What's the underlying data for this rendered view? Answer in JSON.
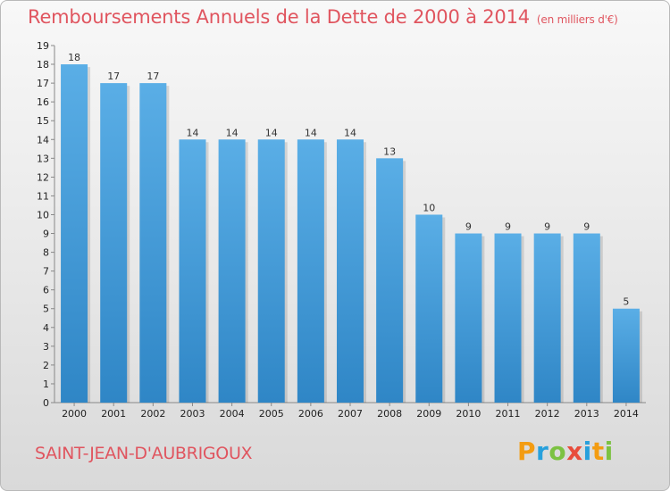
{
  "title": "Remboursements Annuels de la Dette de 2000 à 2014",
  "subtitle": "(en milliers d'€)",
  "commune": "SAINT-JEAN-D'AUBRIGOUX",
  "logo": {
    "letters": [
      "P",
      "r",
      "o",
      "x",
      "i",
      "t",
      "i"
    ],
    "colors": [
      "#f39c12",
      "#27a0dc",
      "#7cc242",
      "#e84d3c",
      "#27a0dc",
      "#f39c12",
      "#7cc242"
    ]
  },
  "colors": {
    "title": "#e0555f",
    "bar_top": "#5aaee6",
    "bar_bottom": "#2f86c6"
  },
  "chart_data": {
    "type": "bar",
    "title": "Remboursements Annuels de la Dette de 2000 à 2014",
    "subtitle": "(en milliers d'€)",
    "categories": [
      "2000",
      "2001",
      "2002",
      "2003",
      "2004",
      "2005",
      "2006",
      "2007",
      "2008",
      "2009",
      "2010",
      "2011",
      "2012",
      "2013",
      "2014"
    ],
    "values": [
      18,
      17,
      17,
      14,
      14,
      14,
      14,
      14,
      13,
      10,
      9,
      9,
      9,
      9,
      5
    ],
    "ylim": [
      0,
      19
    ],
    "yticks": [
      "0",
      "1",
      "2",
      "3",
      "4",
      "5",
      "6",
      "7",
      "8",
      "9",
      "10",
      "11",
      "12",
      "13",
      "14",
      "15",
      "16",
      "17",
      "18",
      "19"
    ],
    "grid": false,
    "xlabel": "",
    "ylabel": ""
  }
}
